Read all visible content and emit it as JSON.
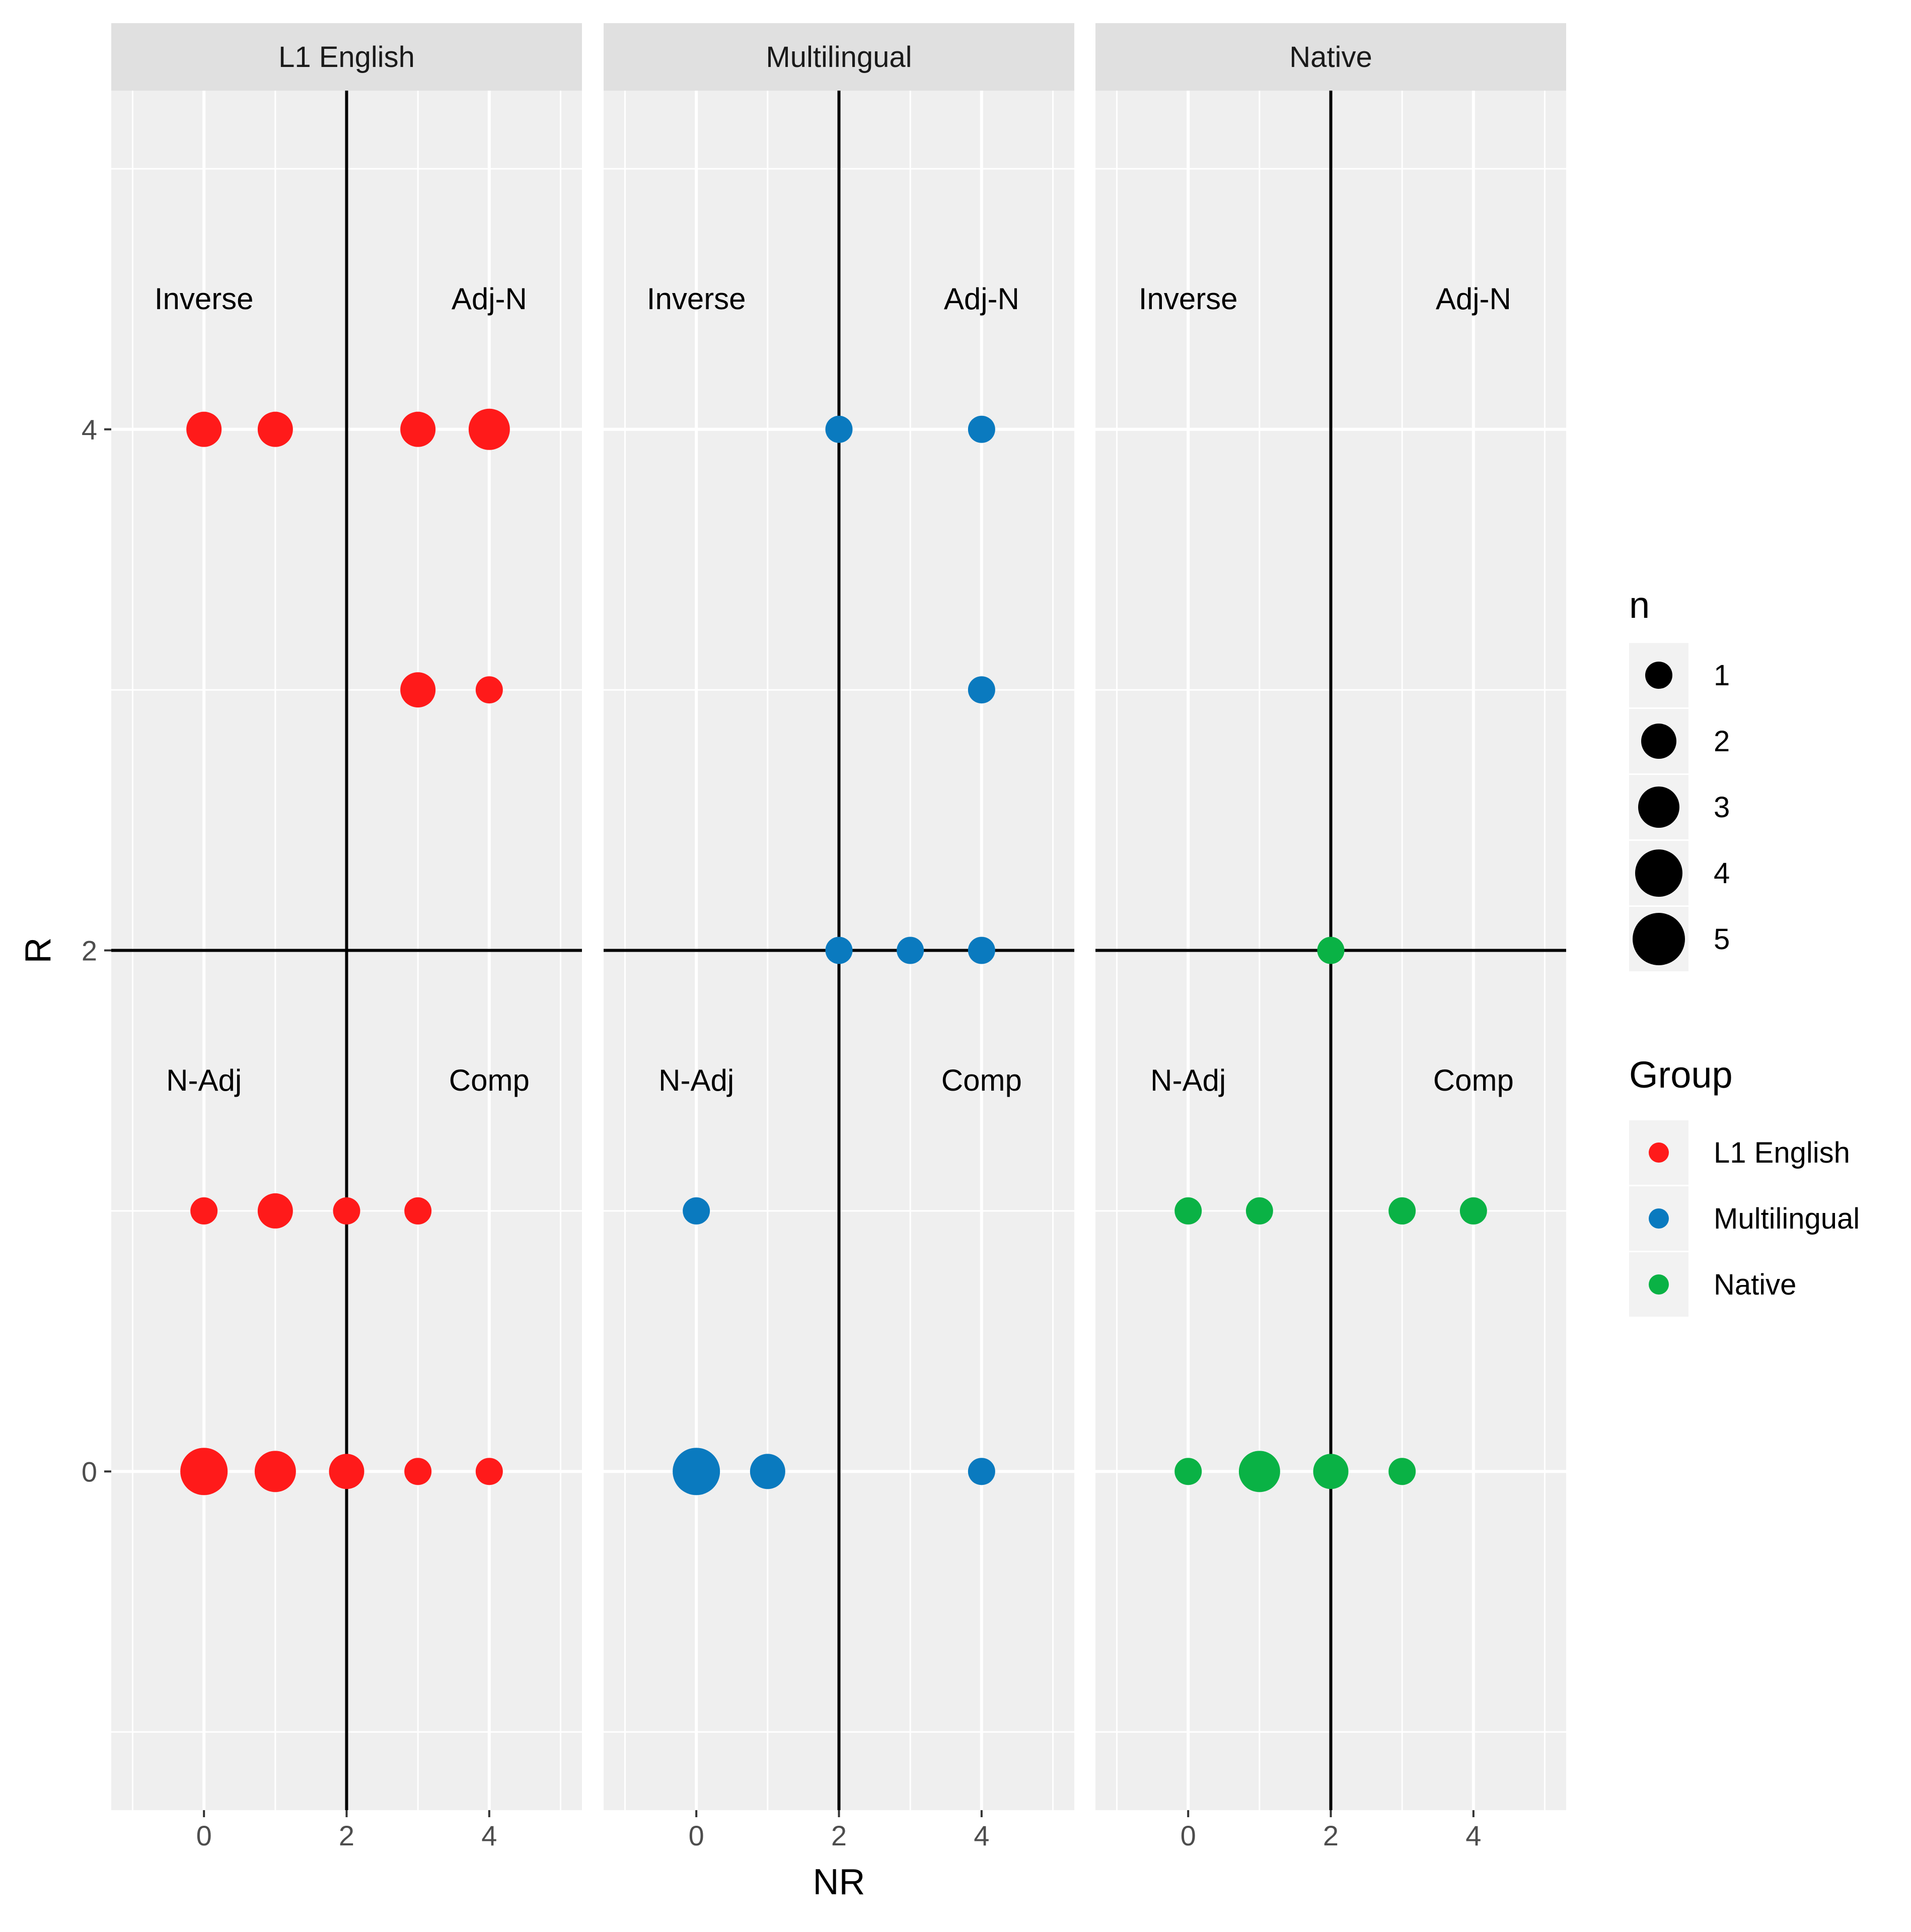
{
  "chart_data": {
    "type": "scatter",
    "facets": [
      "L1 English",
      "Multilingual",
      "Native"
    ],
    "xlabel": "NR",
    "ylabel": "R",
    "xlim": [
      -1.3,
      5.3
    ],
    "ylim": [
      -1.3,
      5.3
    ],
    "x_ticks": [
      0,
      2,
      4
    ],
    "y_ticks": [
      0,
      2,
      4
    ],
    "reference_lines": {
      "x": 2,
      "y": 2
    },
    "quadrant_labels": [
      {
        "text": "Inverse",
        "x": 0,
        "y": 4.5
      },
      {
        "text": "Adj-N",
        "x": 4,
        "y": 4.5
      },
      {
        "text": "N-Adj",
        "x": 0,
        "y": 1.5
      },
      {
        "text": "Comp",
        "x": 4,
        "y": 1.5
      }
    ],
    "group_colors": {
      "L1 English": "#ff1a1a",
      "Multilingual": "#0a7abf",
      "Native": "#0ab245"
    },
    "series": [
      {
        "name": "L1 English",
        "points": [
          {
            "x": 0,
            "y": 4,
            "n": 2
          },
          {
            "x": 1,
            "y": 4,
            "n": 2
          },
          {
            "x": 3,
            "y": 4,
            "n": 2
          },
          {
            "x": 4,
            "y": 4,
            "n": 3
          },
          {
            "x": 3,
            "y": 3,
            "n": 2
          },
          {
            "x": 4,
            "y": 3,
            "n": 1
          },
          {
            "x": 0,
            "y": 1,
            "n": 1
          },
          {
            "x": 1,
            "y": 1,
            "n": 2
          },
          {
            "x": 2,
            "y": 1,
            "n": 1
          },
          {
            "x": 3,
            "y": 1,
            "n": 1
          },
          {
            "x": 0,
            "y": 0,
            "n": 4
          },
          {
            "x": 1,
            "y": 0,
            "n": 3
          },
          {
            "x": 2,
            "y": 0,
            "n": 2
          },
          {
            "x": 3,
            "y": 0,
            "n": 1
          },
          {
            "x": 4,
            "y": 0,
            "n": 1
          }
        ]
      },
      {
        "name": "Multilingual",
        "points": [
          {
            "x": 2,
            "y": 4,
            "n": 1
          },
          {
            "x": 4,
            "y": 4,
            "n": 1
          },
          {
            "x": 4,
            "y": 3,
            "n": 1
          },
          {
            "x": 2,
            "y": 2,
            "n": 1
          },
          {
            "x": 3,
            "y": 2,
            "n": 1
          },
          {
            "x": 4,
            "y": 2,
            "n": 1
          },
          {
            "x": 0,
            "y": 1,
            "n": 1
          },
          {
            "x": 0,
            "y": 0,
            "n": 4
          },
          {
            "x": 1,
            "y": 0,
            "n": 2
          },
          {
            "x": 4,
            "y": 0,
            "n": 1
          }
        ]
      },
      {
        "name": "Native",
        "points": [
          {
            "x": 2,
            "y": 2,
            "n": 1
          },
          {
            "x": 0,
            "y": 1,
            "n": 1
          },
          {
            "x": 1,
            "y": 1,
            "n": 1
          },
          {
            "x": 3,
            "y": 1,
            "n": 1
          },
          {
            "x": 4,
            "y": 1,
            "n": 1
          },
          {
            "x": 0,
            "y": 0,
            "n": 1
          },
          {
            "x": 1,
            "y": 0,
            "n": 3
          },
          {
            "x": 2,
            "y": 0,
            "n": 2
          },
          {
            "x": 3,
            "y": 0,
            "n": 1
          }
        ]
      }
    ],
    "legend": {
      "size_title": "n",
      "size_levels": [
        "1",
        "2",
        "3",
        "4",
        "5"
      ],
      "color_title": "Group",
      "color_levels": [
        "L1 English",
        "Multilingual",
        "Native"
      ],
      "placement": "right"
    }
  }
}
